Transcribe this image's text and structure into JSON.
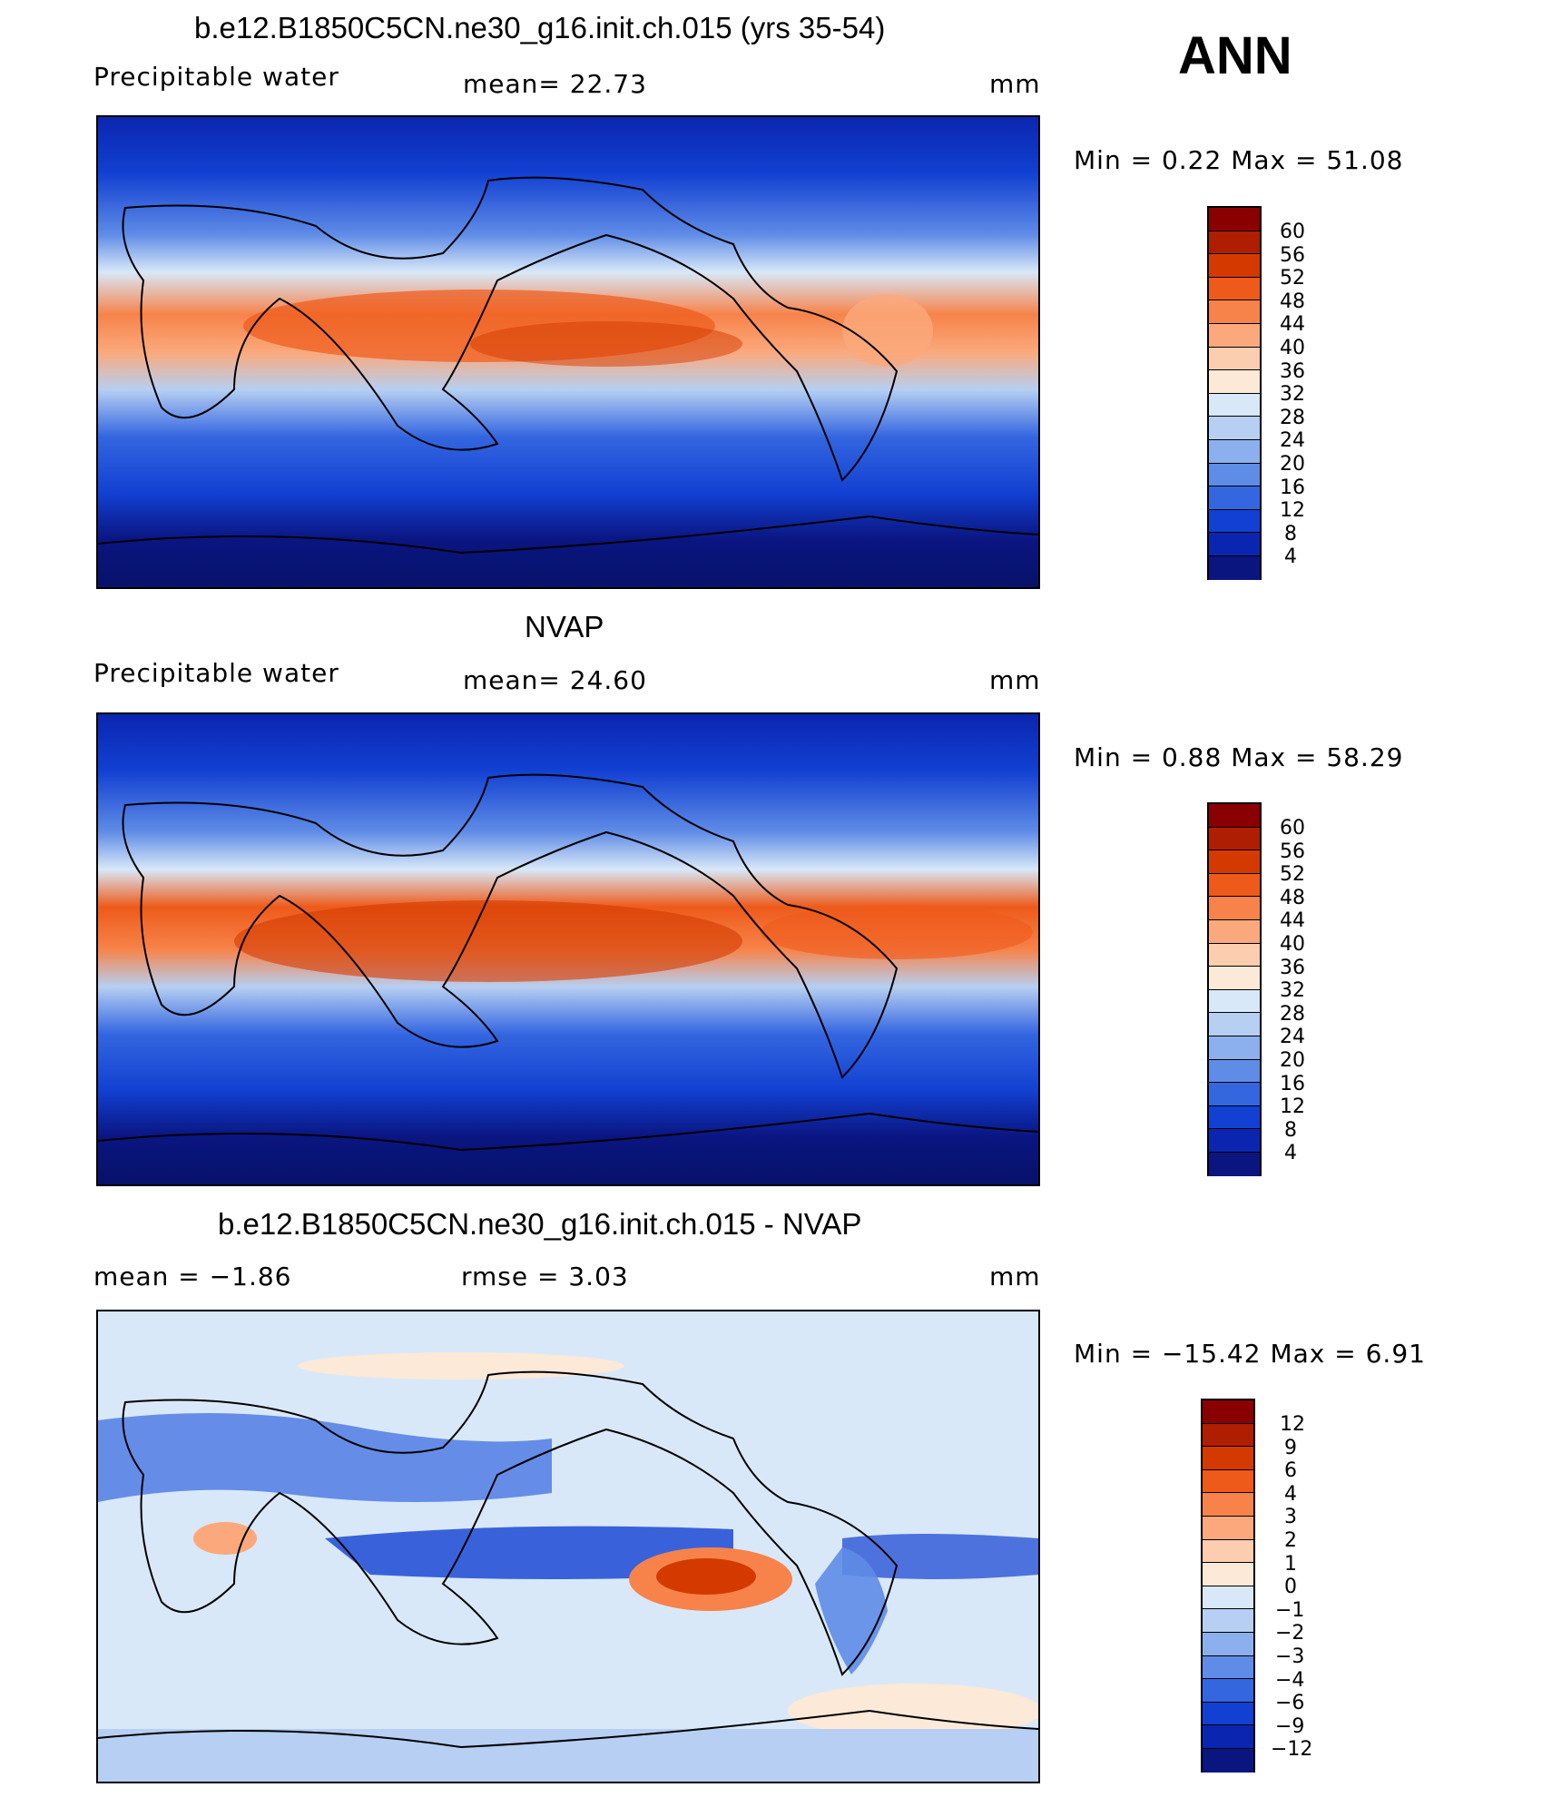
{
  "season": "ANN",
  "panels": [
    {
      "title": "b.e12.B1850C5CN.ne30_g16.init.ch.015 (yrs 35-54)",
      "left_label": "Precipitable  water",
      "center_label": "mean=   22.73",
      "right_label": "mm",
      "minmax": "Min  =     0.22  Max  =    51.08"
    },
    {
      "title": "NVAP",
      "left_label": "Precipitable  water",
      "center_label": "mean=   24.60",
      "right_label": "mm",
      "minmax": "Min  =     0.88  Max  =    58.29"
    },
    {
      "title": "b.e12.B1850C5CN.ne30_g16.init.ch.015 - NVAP",
      "left_label": "mean  =    −1.86",
      "center_label": "rmse  =      3.03",
      "right_label": "mm",
      "minmax": "Min  =  −15.42  Max  =     6.91"
    }
  ],
  "colorbars": {
    "field_levels": [
      "60",
      "56",
      "52",
      "48",
      "44",
      "40",
      "36",
      "32",
      "28",
      "24",
      "20",
      "16",
      "12",
      "8",
      "4"
    ],
    "field_colors": [
      "#8a0000",
      "#b01e00",
      "#d43a00",
      "#ee5a1a",
      "#f7834a",
      "#fba97c",
      "#fdcdb0",
      "#fde9d8",
      "#d8e8f8",
      "#b6cff2",
      "#8cb0ee",
      "#5f8ce6",
      "#3466e0",
      "#1240d2",
      "#0a26b0",
      "#0a1580"
    ],
    "diff_levels": [
      "12",
      "9",
      "6",
      "4",
      "3",
      "2",
      "1",
      "0",
      "−1",
      "−2",
      "−3",
      "−4",
      "−6",
      "−9",
      "−12"
    ],
    "diff_colors": [
      "#8a0000",
      "#b01e00",
      "#d43a00",
      "#ee5a1a",
      "#f7834a",
      "#fba97c",
      "#fdcdb0",
      "#fde9d8",
      "#d8e8f8",
      "#b6cff2",
      "#8cb0ee",
      "#5f8ce6",
      "#3466e0",
      "#1240d2",
      "#0a26b0",
      "#0a1580"
    ]
  }
}
